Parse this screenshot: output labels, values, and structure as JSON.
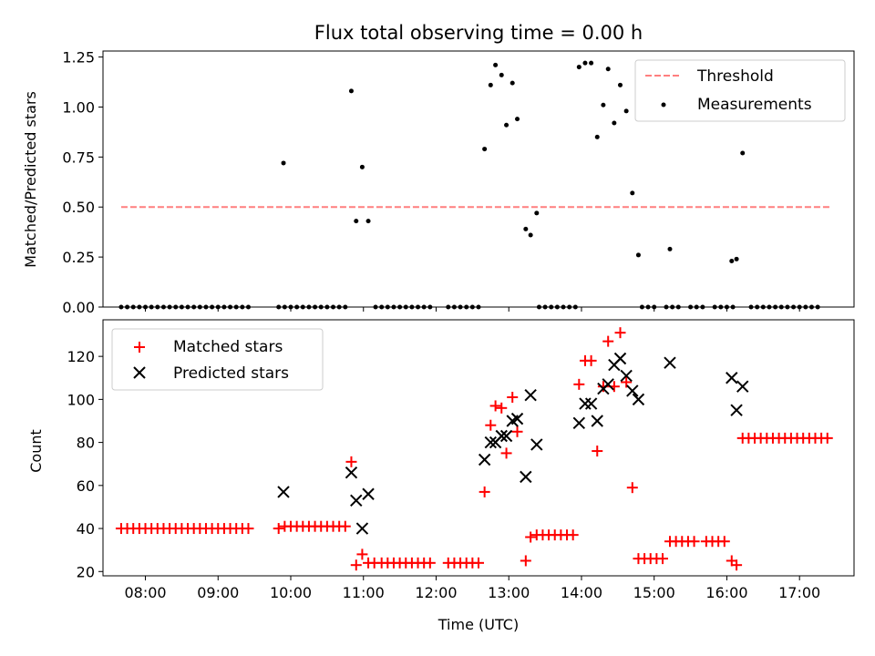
{
  "chart_data": [
    {
      "type": "scatter",
      "title": "Flux total observing time = 0.00 h",
      "xlabel": "",
      "ylabel": "Matched/Predicted stars",
      "ylim": [
        0,
        1.28
      ],
      "xlim": [
        "07:25",
        "17:45"
      ],
      "yticks": [
        0,
        0.25,
        0.5,
        0.75,
        1.0,
        1.25
      ],
      "ytick_labels": [
        "0.00",
        "0.25",
        "0.50",
        "0.75",
        "1.00",
        "1.25"
      ],
      "legend": {
        "placement": "top-right",
        "entries": [
          "Threshold",
          "Measurements"
        ]
      },
      "threshold": {
        "name": "Threshold",
        "value": 0.5,
        "x_range": [
          "07:40",
          "17:25"
        ],
        "color": "#ff7f7f",
        "style": "dashed"
      },
      "series": [
        {
          "name": "Measurements",
          "marker": "dot",
          "color": "#000000",
          "points": [
            [
              "07:40",
              0
            ],
            [
              "07:45",
              0
            ],
            [
              "07:50",
              0
            ],
            [
              "07:55",
              0
            ],
            [
              "08:00",
              0
            ],
            [
              "08:05",
              0
            ],
            [
              "08:10",
              0
            ],
            [
              "08:15",
              0
            ],
            [
              "08:20",
              0
            ],
            [
              "08:25",
              0
            ],
            [
              "08:30",
              0
            ],
            [
              "08:35",
              0
            ],
            [
              "08:40",
              0
            ],
            [
              "08:45",
              0
            ],
            [
              "08:50",
              0
            ],
            [
              "08:55",
              0
            ],
            [
              "09:00",
              0
            ],
            [
              "09:05",
              0
            ],
            [
              "09:10",
              0
            ],
            [
              "09:15",
              0
            ],
            [
              "09:20",
              0
            ],
            [
              "09:25",
              0
            ],
            [
              "09:50",
              0
            ],
            [
              "09:55",
              0
            ],
            [
              "10:00",
              0
            ],
            [
              "10:05",
              0
            ],
            [
              "10:10",
              0
            ],
            [
              "10:15",
              0
            ],
            [
              "10:20",
              0
            ],
            [
              "10:25",
              0
            ],
            [
              "10:30",
              0
            ],
            [
              "10:35",
              0
            ],
            [
              "10:40",
              0
            ],
            [
              "10:45",
              0
            ],
            [
              "11:10",
              0
            ],
            [
              "11:15",
              0
            ],
            [
              "11:20",
              0
            ],
            [
              "11:25",
              0
            ],
            [
              "11:30",
              0
            ],
            [
              "11:35",
              0
            ],
            [
              "11:40",
              0
            ],
            [
              "11:45",
              0
            ],
            [
              "11:50",
              0
            ],
            [
              "11:55",
              0
            ],
            [
              "12:10",
              0
            ],
            [
              "12:15",
              0
            ],
            [
              "12:20",
              0
            ],
            [
              "12:25",
              0
            ],
            [
              "12:30",
              0
            ],
            [
              "12:35",
              0
            ],
            [
              "13:25",
              0
            ],
            [
              "13:30",
              0
            ],
            [
              "13:35",
              0
            ],
            [
              "13:40",
              0
            ],
            [
              "13:45",
              0
            ],
            [
              "13:50",
              0
            ],
            [
              "13:55",
              0
            ],
            [
              "14:50",
              0
            ],
            [
              "14:55",
              0
            ],
            [
              "15:00",
              0
            ],
            [
              "15:10",
              0
            ],
            [
              "15:15",
              0
            ],
            [
              "15:20",
              0
            ],
            [
              "15:30",
              0
            ],
            [
              "15:35",
              0
            ],
            [
              "15:40",
              0
            ],
            [
              "15:50",
              0
            ],
            [
              "15:55",
              0
            ],
            [
              "16:00",
              0
            ],
            [
              "16:05",
              0
            ],
            [
              "16:20",
              0
            ],
            [
              "16:25",
              0
            ],
            [
              "16:30",
              0
            ],
            [
              "16:35",
              0
            ],
            [
              "16:40",
              0
            ],
            [
              "16:45",
              0
            ],
            [
              "16:50",
              0
            ],
            [
              "16:55",
              0
            ],
            [
              "17:00",
              0
            ],
            [
              "17:05",
              0
            ],
            [
              "17:10",
              0
            ],
            [
              "17:15",
              0
            ],
            [
              "09:54",
              0.72
            ],
            [
              "10:50",
              1.08
            ],
            [
              "10:54",
              0.43
            ],
            [
              "10:59",
              0.7
            ],
            [
              "11:04",
              0.43
            ],
            [
              "12:40",
              0.79
            ],
            [
              "12:45",
              1.11
            ],
            [
              "12:49",
              1.21
            ],
            [
              "12:54",
              1.16
            ],
            [
              "12:58",
              0.91
            ],
            [
              "13:03",
              1.12
            ],
            [
              "13:07",
              0.94
            ],
            [
              "13:14",
              0.39
            ],
            [
              "13:18",
              0.36
            ],
            [
              "13:23",
              0.47
            ],
            [
              "13:58",
              1.2
            ],
            [
              "14:03",
              1.22
            ],
            [
              "14:08",
              1.22
            ],
            [
              "14:13",
              0.85
            ],
            [
              "14:18",
              1.01
            ],
            [
              "14:22",
              1.19
            ],
            [
              "14:27",
              0.92
            ],
            [
              "14:32",
              1.11
            ],
            [
              "14:37",
              0.98
            ],
            [
              "14:42",
              0.57
            ],
            [
              "14:47",
              0.26
            ],
            [
              "15:13",
              0.29
            ],
            [
              "16:04",
              0.23
            ],
            [
              "16:08",
              0.24
            ],
            [
              "16:13",
              0.77
            ]
          ]
        }
      ]
    },
    {
      "type": "scatter",
      "title": "",
      "xlabel": "Time (UTC)",
      "ylabel": "Count",
      "ylim": [
        18,
        137
      ],
      "xlim": [
        "07:25",
        "17:45"
      ],
      "xticks": [
        "08:00",
        "09:00",
        "10:00",
        "11:00",
        "12:00",
        "13:00",
        "14:00",
        "15:00",
        "16:00",
        "17:00"
      ],
      "yticks": [
        20,
        40,
        60,
        80,
        100,
        120
      ],
      "ytick_labels": [
        "20",
        "40",
        "60",
        "80",
        "100",
        "120"
      ],
      "legend": {
        "placement": "top-left",
        "entries": [
          "Matched stars",
          "Predicted stars"
        ]
      },
      "series": [
        {
          "name": "Matched stars",
          "marker": "plus",
          "color": "#ff0000",
          "points": [
            [
              "07:40",
              40
            ],
            [
              "07:45",
              40
            ],
            [
              "07:50",
              40
            ],
            [
              "07:55",
              40
            ],
            [
              "08:00",
              40
            ],
            [
              "08:05",
              40
            ],
            [
              "08:10",
              40
            ],
            [
              "08:15",
              40
            ],
            [
              "08:20",
              40
            ],
            [
              "08:25",
              40
            ],
            [
              "08:30",
              40
            ],
            [
              "08:35",
              40
            ],
            [
              "08:40",
              40
            ],
            [
              "08:45",
              40
            ],
            [
              "08:50",
              40
            ],
            [
              "08:55",
              40
            ],
            [
              "09:00",
              40
            ],
            [
              "09:05",
              40
            ],
            [
              "09:10",
              40
            ],
            [
              "09:15",
              40
            ],
            [
              "09:20",
              40
            ],
            [
              "09:25",
              40
            ],
            [
              "09:50",
              40
            ],
            [
              "09:55",
              41
            ],
            [
              "10:00",
              41
            ],
            [
              "10:05",
              41
            ],
            [
              "10:10",
              41
            ],
            [
              "10:15",
              41
            ],
            [
              "10:20",
              41
            ],
            [
              "10:25",
              41
            ],
            [
              "10:30",
              41
            ],
            [
              "10:35",
              41
            ],
            [
              "10:40",
              41
            ],
            [
              "10:45",
              41
            ],
            [
              "10:50",
              71
            ],
            [
              "10:54",
              23
            ],
            [
              "10:59",
              28
            ],
            [
              "11:04",
              24
            ],
            [
              "11:09",
              24
            ],
            [
              "11:15",
              24
            ],
            [
              "11:20",
              24
            ],
            [
              "11:25",
              24
            ],
            [
              "11:30",
              24
            ],
            [
              "11:35",
              24
            ],
            [
              "11:40",
              24
            ],
            [
              "11:45",
              24
            ],
            [
              "11:50",
              24
            ],
            [
              "11:55",
              24
            ],
            [
              "12:10",
              24
            ],
            [
              "12:15",
              24
            ],
            [
              "12:20",
              24
            ],
            [
              "12:25",
              24
            ],
            [
              "12:30",
              24
            ],
            [
              "12:35",
              24
            ],
            [
              "12:40",
              57
            ],
            [
              "12:45",
              88
            ],
            [
              "12:49",
              97
            ],
            [
              "12:54",
              96
            ],
            [
              "12:58",
              75
            ],
            [
              "13:03",
              101
            ],
            [
              "13:07",
              85
            ],
            [
              "13:14",
              25
            ],
            [
              "13:18",
              36
            ],
            [
              "13:23",
              37
            ],
            [
              "13:28",
              37
            ],
            [
              "13:33",
              37
            ],
            [
              "13:38",
              37
            ],
            [
              "13:43",
              37
            ],
            [
              "13:48",
              37
            ],
            [
              "13:53",
              37
            ],
            [
              "13:58",
              107
            ],
            [
              "14:03",
              118
            ],
            [
              "14:08",
              118
            ],
            [
              "14:13",
              76
            ],
            [
              "14:18",
              106
            ],
            [
              "14:22",
              127
            ],
            [
              "14:27",
              106
            ],
            [
              "14:32",
              131
            ],
            [
              "14:37",
              108
            ],
            [
              "14:42",
              59
            ],
            [
              "14:47",
              26
            ],
            [
              "14:52",
              26
            ],
            [
              "14:57",
              26
            ],
            [
              "15:02",
              26
            ],
            [
              "15:07",
              26
            ],
            [
              "15:13",
              34
            ],
            [
              "15:18",
              34
            ],
            [
              "15:23",
              34
            ],
            [
              "15:28",
              34
            ],
            [
              "15:33",
              34
            ],
            [
              "15:43",
              34
            ],
            [
              "15:48",
              34
            ],
            [
              "15:53",
              34
            ],
            [
              "15:58",
              34
            ],
            [
              "16:04",
              25
            ],
            [
              "16:08",
              23
            ],
            [
              "16:13",
              82
            ],
            [
              "16:18",
              82
            ],
            [
              "16:23",
              82
            ],
            [
              "16:28",
              82
            ],
            [
              "16:33",
              82
            ],
            [
              "16:38",
              82
            ],
            [
              "16:43",
              82
            ],
            [
              "16:48",
              82
            ],
            [
              "16:53",
              82
            ],
            [
              "16:58",
              82
            ],
            [
              "17:03",
              82
            ],
            [
              "17:08",
              82
            ],
            [
              "17:13",
              82
            ],
            [
              "17:18",
              82
            ],
            [
              "17:23",
              82
            ]
          ]
        },
        {
          "name": "Predicted stars",
          "marker": "x",
          "color": "#000000",
          "points": [
            [
              "09:54",
              57
            ],
            [
              "10:50",
              66
            ],
            [
              "10:54",
              53
            ],
            [
              "10:59",
              40
            ],
            [
              "11:04",
              56
            ],
            [
              "12:40",
              72
            ],
            [
              "12:45",
              80
            ],
            [
              "12:49",
              80
            ],
            [
              "12:54",
              83
            ],
            [
              "12:58",
              83
            ],
            [
              "13:03",
              90
            ],
            [
              "13:07",
              91
            ],
            [
              "13:14",
              64
            ],
            [
              "13:18",
              102
            ],
            [
              "13:23",
              79
            ],
            [
              "13:58",
              89
            ],
            [
              "14:03",
              98
            ],
            [
              "14:08",
              98
            ],
            [
              "14:13",
              90
            ],
            [
              "14:18",
              105
            ],
            [
              "14:22",
              107
            ],
            [
              "14:27",
              116
            ],
            [
              "14:32",
              119
            ],
            [
              "14:37",
              111
            ],
            [
              "14:42",
              104
            ],
            [
              "14:47",
              100
            ],
            [
              "15:13",
              117
            ],
            [
              "16:04",
              110
            ],
            [
              "16:08",
              95
            ],
            [
              "16:13",
              106
            ]
          ]
        }
      ]
    }
  ]
}
